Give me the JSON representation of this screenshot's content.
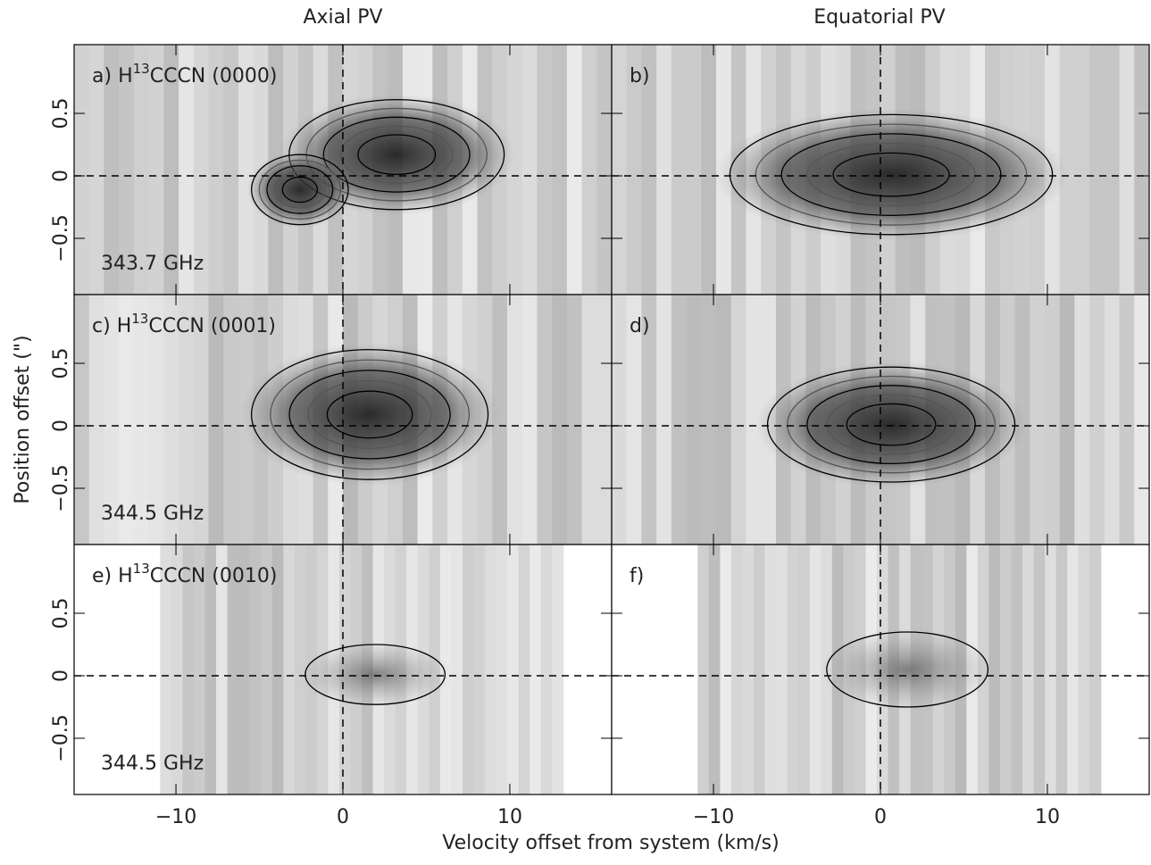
{
  "column_titles": [
    "Axial PV",
    "Equatorial PV"
  ],
  "x_label": "Velocity offset from system (km/s)",
  "y_label": "Position offset (\")",
  "chart_data": [
    {
      "type": "pv-image",
      "label": "a)",
      "species": "H",
      "isotope": "13",
      "rest": "CCCN (0000)",
      "frequency": "343.7 GHz",
      "xlim": [
        -16.1,
        16.1
      ],
      "ylim": [
        -0.95,
        1.05
      ],
      "xticks": [
        {
          "value": -10,
          "label": "−10"
        },
        0,
        10
      ],
      "yticks": [
        {
          "value": -0.5,
          "label": "−0.5"
        },
        0,
        0.5
      ]
    },
    {
      "type": "pv-image",
      "label": "b)",
      "xlim": [
        -16.1,
        16.1
      ],
      "ylim": [
        -0.95,
        1.05
      ],
      "xticks": [
        {
          "value": -10,
          "label": "−10"
        },
        0,
        10
      ],
      "yticks": [
        {
          "value": -0.5,
          "label": "−0.5"
        },
        0,
        0.5
      ]
    },
    {
      "type": "pv-image",
      "label": "c)",
      "species": "H",
      "isotope": "13",
      "rest": "CCCN (0001)",
      "frequency": "344.5 GHz",
      "xlim": [
        -16.1,
        16.1
      ],
      "ylim": [
        -0.95,
        1.05
      ],
      "xticks": [
        {
          "value": -10,
          "label": "−10"
        },
        0,
        10
      ],
      "yticks": [
        {
          "value": -0.5,
          "label": "−0.5"
        },
        0,
        0.5
      ]
    },
    {
      "type": "pv-image",
      "label": "d)",
      "xlim": [
        -16.1,
        16.1
      ],
      "ylim": [
        -0.95,
        1.05
      ],
      "xticks": [
        {
          "value": -10,
          "label": "−10"
        },
        0,
        10
      ],
      "yticks": [
        {
          "value": -0.5,
          "label": "−0.5"
        },
        0,
        0.5
      ]
    },
    {
      "type": "pv-image",
      "label": "e)",
      "species": "H",
      "isotope": "13",
      "rest": "CCCN (0010)",
      "frequency": "344.5 GHz",
      "xlim": [
        -16.1,
        16.1
      ],
      "ylim": [
        -0.95,
        1.05
      ],
      "xticks": [
        {
          "value": -10,
          "label": "−10"
        },
        0,
        10
      ],
      "yticks": [
        {
          "value": -0.5,
          "label": "−0.5"
        },
        0,
        0.5
      ]
    },
    {
      "type": "pv-image",
      "label": "f)",
      "xlim": [
        -16.1,
        16.1
      ],
      "ylim": [
        -0.95,
        1.05
      ],
      "xticks": [
        {
          "value": -10,
          "label": "−10"
        },
        0,
        10
      ],
      "yticks": [
        {
          "value": -0.5,
          "label": "−0.5"
        },
        0,
        0.5
      ]
    }
  ]
}
